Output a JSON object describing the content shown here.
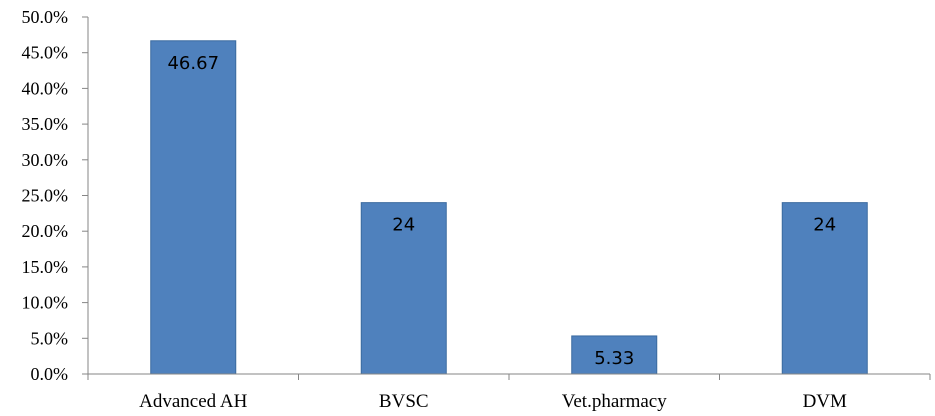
{
  "chart_data": {
    "type": "bar",
    "categories": [
      "Advanced AH",
      "BVSC",
      "Vet.pharmacy",
      "DVM"
    ],
    "values": [
      46.67,
      24,
      5.33,
      24
    ],
    "data_labels": [
      "46.67",
      "24",
      "5.33",
      "24"
    ],
    "y_ticks": [
      "0.0%",
      "5.0%",
      "10.0%",
      "15.0%",
      "20.0%",
      "25.0%",
      "30.0%",
      "35.0%",
      "40.0%",
      "45.0%",
      "50.0%"
    ],
    "ylim": [
      0,
      50
    ],
    "y_step": 5,
    "title": "",
    "xlabel": "",
    "ylabel": "",
    "grid": false,
    "legend": "none",
    "bar_color": "#4F81BD",
    "bar_edge_color": "#3A6A9F",
    "axis_color": "#868686"
  }
}
